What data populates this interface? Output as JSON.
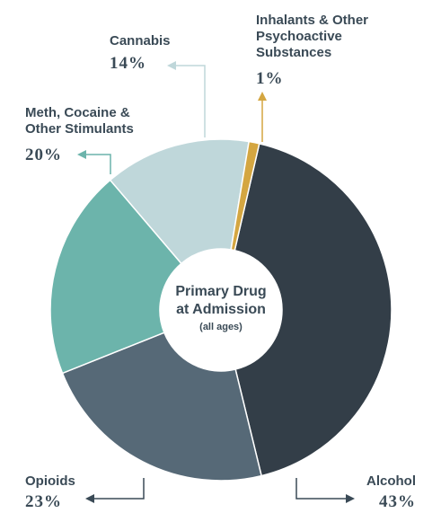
{
  "chart_data": {
    "type": "pie",
    "donut": true,
    "center_title": [
      "Primary Drug",
      "at Admission"
    ],
    "center_subtitle": "(all ages)",
    "slices": [
      {
        "key": "alcohol",
        "label": [
          "Alcohol"
        ],
        "percent_label": "43%",
        "value": 43,
        "color": "#333e48"
      },
      {
        "key": "opioids",
        "label": [
          "Opioids"
        ],
        "percent_label": "23%",
        "value": 23,
        "color": "#566977"
      },
      {
        "key": "stimulants",
        "label": [
          "Meth, Cocaine &",
          "Other Stimulants"
        ],
        "percent_label": "20%",
        "value": 20,
        "color": "#6cb4ab"
      },
      {
        "key": "cannabis",
        "label": [
          "Cannabis"
        ],
        "percent_label": "14%",
        "value": 14,
        "color": "#bfd7da"
      },
      {
        "key": "inhalants",
        "label": [
          "Inhalants & Other",
          "Psychoactive",
          "Substances"
        ],
        "percent_label": "1%",
        "value": 1,
        "color": "#d4a641"
      }
    ],
    "leader_color": "#3a4a56",
    "inhalants_arrow_color": "#d4a641",
    "cannabis_arrow_color": "#bfd7da",
    "stimulants_arrow_color": "#6cb4ab"
  }
}
